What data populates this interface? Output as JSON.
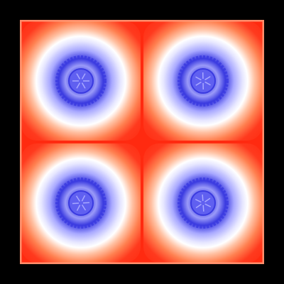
{
  "image": {
    "kind": "square-tiled heatmap pattern",
    "background_color": "#000000",
    "grid": {
      "rows": 2,
      "columns": 2
    },
    "colormap": {
      "outer": "#ffd0a8",
      "hot": "#ff2a10",
      "mid": "#ff8050",
      "light": "#ffffff",
      "cool": "#a8a8ff",
      "cold": "#3a3ae0",
      "core": "#6060f0"
    },
    "cells": [
      {
        "row": 0,
        "col": 0
      },
      {
        "row": 0,
        "col": 1
      },
      {
        "row": 1,
        "col": 0
      },
      {
        "row": 1,
        "col": 1
      }
    ]
  }
}
